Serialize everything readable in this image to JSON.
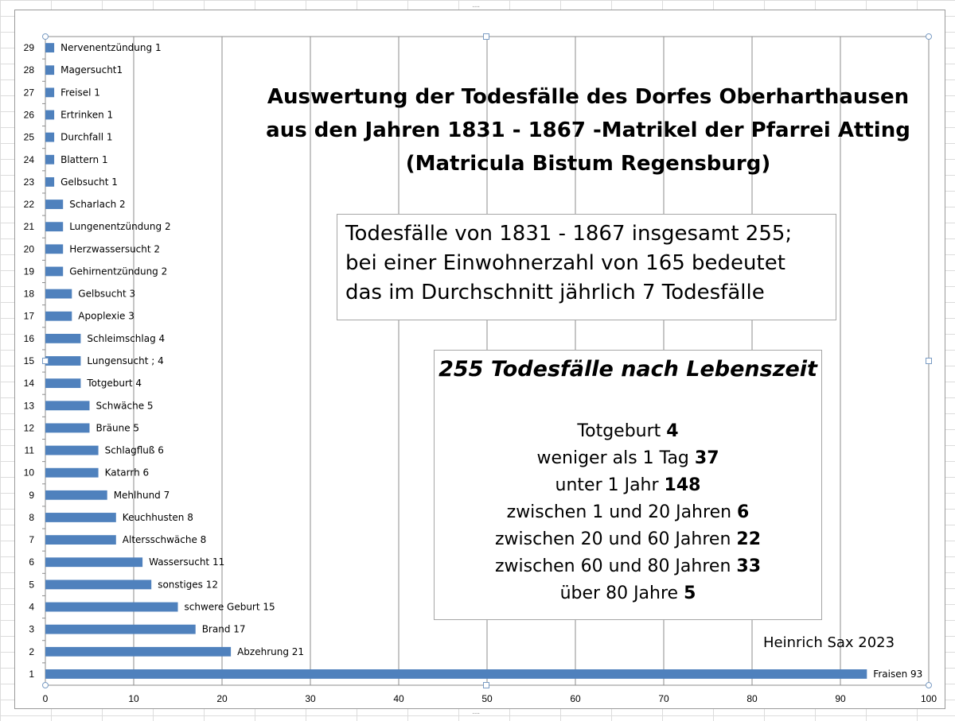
{
  "chart_data": {
    "type": "bar",
    "orientation": "horizontal",
    "title": "",
    "xlabel": "",
    "ylabel": "",
    "xlim": [
      0,
      100
    ],
    "x_ticks": [
      "0",
      "10",
      "20",
      "30",
      "40",
      "50",
      "60",
      "70",
      "80",
      "90",
      "100"
    ],
    "grid": true,
    "categories": [
      "1",
      "2",
      "3",
      "4",
      "5",
      "6",
      "7",
      "8",
      "9",
      "10",
      "11",
      "12",
      "13",
      "14",
      "15",
      "16",
      "17",
      "18",
      "19",
      "20",
      "21",
      "22",
      "23",
      "24",
      "25",
      "26",
      "27",
      "28",
      "29"
    ],
    "values": [
      93,
      21,
      17,
      15,
      12,
      11,
      8,
      8,
      7,
      6,
      6,
      5,
      5,
      4,
      4,
      4,
      3,
      3,
      2,
      2,
      2,
      2,
      1,
      1,
      1,
      1,
      1,
      1,
      1
    ],
    "data_labels": [
      "Fraisen 93",
      "Abzehrung 21",
      "Brand 17",
      "schwere Geburt 15",
      "sonstiges 12",
      "Wassersucht 11",
      "Altersschwäche 8",
      "Keuchhusten 8",
      "Mehlhund 7",
      "Katarrh 6",
      "Schlagfluß 6",
      "Bräune 5",
      "Schwäche 5",
      "Totgeburt 4",
      "Lungensucht ; 4",
      "Schleimschlag 4",
      "Apoplexie 3",
      "Gelbsucht 3",
      "Gehirnentzündung 2",
      "Herzwassersucht 2",
      "Lungenentzündung 2",
      "Scharlach 2",
      "Gelbsucht 1",
      "Blattern 1",
      "Durchfall 1",
      "Ertrinken 1",
      "Freisel 1",
      "Magersucht1",
      "Nervenentzündung 1"
    ],
    "bar_color": "#4f81bd"
  },
  "title_lines": [
    "Auswertung der Todesfälle des Dorfes Oberharthausen",
    "aus den Jahren 1831 - 1867 -Matrikel der Pfarrei Atting",
    "(Matricula Bistum Regensburg)"
  ],
  "summary_box": {
    "lines": [
      "Todesfälle von 1831 - 1867 insgesamt 255;",
      "bei einer Einwohnerzahl von 165 bedeutet",
      "das im Durchschnitt jährlich 7 Todesfälle"
    ]
  },
  "age_box": {
    "heading": "255 Todesfälle nach Lebenszeit",
    "rows": [
      {
        "label": "Totgeburt ",
        "value": "4"
      },
      {
        "label": "weniger als 1 Tag ",
        "value": "37"
      },
      {
        "label": "unter 1 Jahr ",
        "value": "148"
      },
      {
        "label": "zwischen 1 und 20 Jahren ",
        "value": "6"
      },
      {
        "label": "zwischen 20 und 60 Jahren ",
        "value": "22"
      },
      {
        "label": "zwischen 60 und 80 Jahren ",
        "value": "33"
      },
      {
        "label": "über 80 Jahre ",
        "value": "5"
      }
    ]
  },
  "author": "Heinrich Sax 2023"
}
